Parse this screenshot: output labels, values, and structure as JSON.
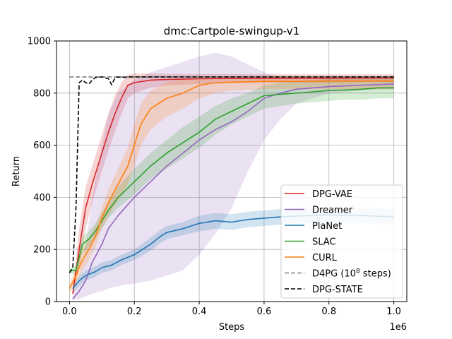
{
  "chart_data": {
    "type": "line",
    "title": "dmc:Cartpole-swingup-v1",
    "xlabel": "Steps",
    "ylabel": "Return",
    "x_offset_text": "1e6",
    "xlim": [
      -0.04,
      1.04
    ],
    "ylim": [
      0,
      1000
    ],
    "x_ticks": [
      0.0,
      0.2,
      0.4,
      0.6,
      0.8,
      1.0
    ],
    "x_tick_labels": [
      "0.0",
      "0.2",
      "0.4",
      "0.6",
      "0.8",
      "1.0"
    ],
    "y_ticks": [
      0,
      200,
      400,
      600,
      800,
      1000
    ],
    "y_tick_labels": [
      "0",
      "200",
      "400",
      "600",
      "800",
      "1000"
    ],
    "grid": true,
    "legend_position": "lower-right",
    "series": [
      {
        "name": "DPG-VAE",
        "color": "#d62728",
        "x": [
          0.01,
          0.03,
          0.05,
          0.07,
          0.1,
          0.12,
          0.14,
          0.16,
          0.18,
          0.2,
          0.25,
          0.3,
          0.4,
          0.5,
          0.6,
          0.7,
          0.8,
          0.9,
          1.0
        ],
        "y": [
          30,
          200,
          360,
          450,
          570,
          650,
          720,
          780,
          830,
          840,
          850,
          852,
          855,
          856,
          856,
          857,
          857,
          858,
          858
        ],
        "lower": [
          20,
          120,
          280,
          380,
          500,
          580,
          650,
          720,
          780,
          800,
          820,
          830,
          835,
          838,
          840,
          840,
          840,
          842,
          842
        ],
        "upper": [
          40,
          280,
          440,
          520,
          640,
          720,
          790,
          840,
          870,
          875,
          875,
          874,
          873,
          873,
          872,
          872,
          872,
          872,
          872
        ]
      },
      {
        "name": "Dreamer",
        "color": "#9467bd",
        "x": [
          0.01,
          0.03,
          0.05,
          0.07,
          0.1,
          0.12,
          0.15,
          0.2,
          0.25,
          0.3,
          0.35,
          0.4,
          0.45,
          0.5,
          0.55,
          0.6,
          0.65,
          0.7,
          0.8,
          0.9,
          1.0
        ],
        "y": [
          10,
          40,
          80,
          150,
          220,
          280,
          330,
          400,
          460,
          520,
          570,
          620,
          660,
          690,
          730,
          780,
          800,
          815,
          825,
          830,
          835
        ],
        "lower": [
          5,
          10,
          20,
          30,
          40,
          50,
          60,
          70,
          80,
          100,
          120,
          180,
          260,
          360,
          500,
          620,
          700,
          760,
          800,
          810,
          815
        ],
        "upper": [
          20,
          100,
          220,
          400,
          600,
          720,
          800,
          850,
          880,
          900,
          920,
          940,
          955,
          940,
          910,
          880,
          860,
          860,
          860,
          860,
          860
        ]
      },
      {
        "name": "PlaNet",
        "color": "#1f77b4",
        "x": [
          0.01,
          0.03,
          0.05,
          0.08,
          0.1,
          0.13,
          0.16,
          0.2,
          0.25,
          0.28,
          0.3,
          0.35,
          0.4,
          0.45,
          0.5,
          0.55,
          0.6,
          0.65,
          0.7,
          0.75,
          0.8,
          0.85,
          0.9,
          0.95,
          1.0
        ],
        "y": [
          50,
          80,
          100,
          115,
          130,
          140,
          160,
          180,
          220,
          250,
          265,
          280,
          300,
          310,
          305,
          315,
          320,
          325,
          328,
          330,
          332,
          330,
          330,
          328,
          325
        ],
        "lower": [
          30,
          60,
          80,
          95,
          110,
          120,
          140,
          160,
          195,
          225,
          240,
          255,
          270,
          280,
          275,
          285,
          290,
          295,
          298,
          300,
          302,
          300,
          300,
          298,
          296
        ],
        "upper": [
          70,
          100,
          120,
          135,
          150,
          160,
          180,
          200,
          245,
          275,
          290,
          305,
          330,
          340,
          335,
          345,
          350,
          355,
          358,
          360,
          362,
          360,
          360,
          358,
          355
        ]
      },
      {
        "name": "SLAC",
        "color": "#2ca02c",
        "x": [
          0.0,
          0.02,
          0.04,
          0.06,
          0.08,
          0.1,
          0.12,
          0.15,
          0.2,
          0.25,
          0.3,
          0.35,
          0.4,
          0.45,
          0.5,
          0.55,
          0.6,
          0.65,
          0.7,
          0.75,
          0.8,
          0.85,
          0.9,
          0.95,
          1.0
        ],
        "y": [
          118,
          120,
          220,
          240,
          270,
          310,
          350,
          400,
          460,
          520,
          570,
          610,
          650,
          700,
          730,
          760,
          790,
          795,
          800,
          805,
          810,
          812,
          815,
          820,
          820
        ],
        "lower": [
          110,
          100,
          180,
          210,
          240,
          280,
          320,
          360,
          410,
          470,
          510,
          550,
          590,
          640,
          680,
          710,
          740,
          750,
          760,
          765,
          770,
          775,
          775,
          780,
          780
        ],
        "upper": [
          125,
          140,
          250,
          270,
          300,
          340,
          380,
          440,
          510,
          570,
          620,
          670,
          710,
          750,
          780,
          800,
          830,
          840,
          845,
          850,
          855,
          860,
          860,
          862,
          862
        ]
      },
      {
        "name": "CURL",
        "color": "#ff7f0e",
        "x": [
          0.0,
          0.02,
          0.04,
          0.06,
          0.08,
          0.1,
          0.12,
          0.15,
          0.18,
          0.2,
          0.22,
          0.25,
          0.3,
          0.35,
          0.4,
          0.45,
          0.5,
          0.6,
          0.7,
          0.8,
          0.9,
          1.0
        ],
        "y": [
          50,
          100,
          160,
          200,
          250,
          320,
          380,
          450,
          520,
          600,
          680,
          740,
          780,
          800,
          830,
          840,
          842,
          845,
          845,
          846,
          846,
          846
        ],
        "lower": [
          30,
          70,
          120,
          160,
          210,
          280,
          330,
          390,
          450,
          520,
          600,
          660,
          710,
          740,
          780,
          800,
          810,
          815,
          815,
          815,
          815,
          815
        ],
        "upper": [
          70,
          130,
          200,
          240,
          290,
          360,
          430,
          510,
          590,
          680,
          760,
          810,
          840,
          855,
          860,
          862,
          865,
          866,
          866,
          866,
          866,
          866
        ]
      },
      {
        "name": "D4PG (10$^8$ steps)",
        "legend_label_main": "D4PG (10",
        "legend_label_sup": "8",
        "legend_label_end": " steps)",
        "color": "#7f7f7f",
        "style": "dashed",
        "x": [
          0.0,
          1.0
        ],
        "y": [
          862,
          862
        ]
      },
      {
        "name": "DPG-STATE",
        "color": "#000000",
        "style": "dashed",
        "x": [
          0.0,
          0.01,
          0.02,
          0.03,
          0.04,
          0.05,
          0.06,
          0.07,
          0.08,
          0.1,
          0.12,
          0.13,
          0.14,
          0.15,
          0.16,
          0.18,
          0.2,
          0.3,
          0.4,
          0.5,
          0.6,
          0.7,
          0.8,
          0.9,
          1.0
        ],
        "y": [
          110,
          130,
          360,
          840,
          850,
          840,
          835,
          850,
          860,
          862,
          855,
          832,
          858,
          862,
          860,
          862,
          862,
          862,
          862,
          862,
          862,
          862,
          862,
          862,
          862
        ]
      }
    ]
  }
}
